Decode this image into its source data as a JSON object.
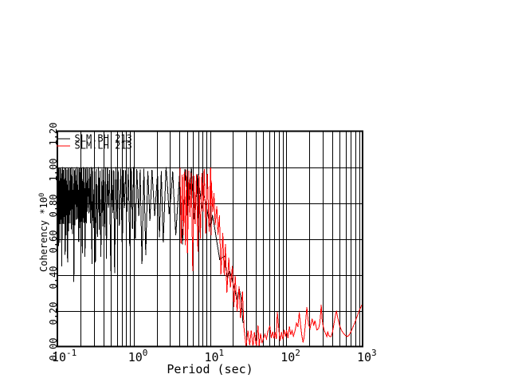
{
  "window": {
    "background": "#ffffff"
  },
  "chart_data": {
    "type": "line",
    "title": "",
    "xlabel": "Period (sec)",
    "ylabel": {
      "text": "Coherency",
      "scale_prefix": "*10",
      "scale_exp": "0"
    },
    "x_scale": "log",
    "y_scale": "linear",
    "xlim": [
      0.1,
      1000
    ],
    "ylim": [
      0.0,
      1.2
    ],
    "grid": true,
    "axis_color": "#000000",
    "background_color": "#ffffff",
    "x_ticks": [
      {
        "base": "10",
        "exp": "-1",
        "value": 0.1
      },
      {
        "base": "10",
        "exp": "0",
        "value": 1
      },
      {
        "base": "10",
        "exp": "1",
        "value": 10
      },
      {
        "base": "10",
        "exp": "2",
        "value": 100
      },
      {
        "base": "10",
        "exp": "3",
        "value": 1000
      }
    ],
    "y_ticks": [
      {
        "label": "0.00",
        "value": 0.0
      },
      {
        "label": "0.20",
        "value": 0.2
      },
      {
        "label": "0.40",
        "value": 0.4
      },
      {
        "label": "0.60",
        "value": 0.6
      },
      {
        "label": "0.80",
        "value": 0.8
      },
      {
        "label": "1.00",
        "value": 1.0
      },
      {
        "label": "1.20",
        "value": 1.2
      }
    ],
    "legend": {
      "position": "top-left",
      "entries": [
        "SLM.BH 213",
        "SLM.LH 213"
      ]
    },
    "series": [
      {
        "name": "SLM.BH 213",
        "color": "#000000",
        "points": [
          [
            0.1,
            0.992
          ],
          [
            0.1015,
            0.563
          ],
          [
            0.1027,
            0.997
          ],
          [
            0.1039,
            0.56
          ],
          [
            0.1052,
            0.994
          ],
          [
            0.1074,
            0.578
          ],
          [
            0.1092,
            0.994
          ],
          [
            0.1106,
            0.682
          ],
          [
            0.1128,
            0.991
          ],
          [
            0.1143,
            0.446
          ],
          [
            0.1164,
            1.0
          ],
          [
            0.1184,
            0.684
          ],
          [
            0.1199,
            0.984
          ],
          [
            0.1217,
            0.683
          ],
          [
            0.1239,
            0.995
          ],
          [
            0.1264,
            0.512
          ],
          [
            0.1282,
            0.998
          ],
          [
            0.1302,
            0.619
          ],
          [
            0.1332,
            0.986
          ],
          [
            0.136,
            0.47
          ],
          [
            0.1379,
            0.996
          ],
          [
            0.1405,
            0.642
          ],
          [
            0.1437,
            0.991
          ],
          [
            0.1465,
            0.687
          ],
          [
            0.1493,
            0.994
          ],
          [
            0.1524,
            0.653
          ],
          [
            0.1546,
            1.0
          ],
          [
            0.1584,
            0.627
          ],
          [
            0.162,
            0.99
          ],
          [
            0.1646,
            0.36
          ],
          [
            0.167,
            0.983
          ],
          [
            0.1696,
            0.675
          ],
          [
            0.1724,
            0.992
          ],
          [
            0.176,
            0.706
          ],
          [
            0.1803,
            1.0
          ],
          [
            0.1835,
            0.709
          ],
          [
            0.187,
            0.991
          ],
          [
            0.1903,
            0.582
          ],
          [
            0.1936,
            0.995
          ],
          [
            0.197,
            0.66
          ],
          [
            0.1999,
            0.993
          ],
          [
            0.2046,
            0.695
          ],
          [
            0.209,
            0.998
          ],
          [
            0.2123,
            0.52
          ],
          [
            0.218,
            1.0
          ],
          [
            0.2225,
            0.689
          ],
          [
            0.2262,
            0.998
          ],
          [
            0.2303,
            0.5
          ],
          [
            0.2344,
            0.99
          ],
          [
            0.2393,
            0.687
          ],
          [
            0.2431,
            1.0
          ],
          [
            0.2475,
            0.751
          ],
          [
            0.2523,
            0.99
          ],
          [
            0.26,
            0.742
          ],
          [
            0.2659,
            0.994
          ],
          [
            0.2717,
            0.686
          ],
          [
            0.2772,
            1.0
          ],
          [
            0.284,
            0.46
          ],
          [
            0.2894,
            0.995
          ],
          [
            0.2985,
            0.66
          ],
          [
            0.3075,
            0.999
          ],
          [
            0.3153,
            0.47
          ],
          [
            0.3246,
            0.989
          ],
          [
            0.3354,
            0.611
          ],
          [
            0.3458,
            1.0
          ],
          [
            0.3541,
            0.651
          ],
          [
            0.3607,
            0.981
          ],
          [
            0.3715,
            0.5
          ],
          [
            0.3841,
            0.992
          ],
          [
            0.3938,
            0.67
          ],
          [
            0.4027,
            0.986
          ],
          [
            0.4149,
            0.664
          ],
          [
            0.4293,
            1.0
          ],
          [
            0.4386,
            0.49
          ],
          [
            0.4525,
            1.0
          ],
          [
            0.4681,
            0.773
          ],
          [
            0.4818,
            0.984
          ],
          [
            0.501,
            0.42
          ],
          [
            0.5155,
            0.99
          ],
          [
            0.5343,
            0.745
          ],
          [
            0.5481,
            0.983
          ],
          [
            0.5624,
            0.41
          ],
          [
            0.5849,
            1.0
          ],
          [
            0.6034,
            0.709
          ],
          [
            0.6251,
            0.983
          ],
          [
            0.6482,
            0.674
          ],
          [
            0.6781,
            0.991
          ],
          [
            0.7093,
            0.53
          ],
          [
            0.7317,
            0.985
          ],
          [
            0.7569,
            0.772
          ],
          [
            0.7859,
            0.982
          ],
          [
            0.8163,
            0.751
          ],
          [
            0.85,
            0.994
          ],
          [
            0.8883,
            0.56
          ],
          [
            0.929,
            0.992
          ],
          [
            0.9651,
            0.656
          ],
          [
            0.9976,
            1.0
          ],
          [
            1.05,
            0.6
          ],
          [
            1.099,
            0.989
          ],
          [
            1.168,
            0.726
          ],
          [
            1.216,
            0.987
          ],
          [
            1.285,
            0.46
          ],
          [
            1.36,
            0.99
          ],
          [
            1.44,
            0.51
          ],
          [
            1.533,
            0.978
          ],
          [
            1.634,
            0.7
          ],
          [
            1.738,
            0.984
          ],
          [
            1.887,
            0.727
          ],
          [
            2.053,
            0.963
          ],
          [
            2.174,
            0.61
          ],
          [
            2.301,
            0.977
          ],
          [
            2.438,
            0.58
          ],
          [
            2.657,
            0.999
          ],
          [
            2.783,
            0.887
          ],
          [
            2.914,
            0.739
          ],
          [
            3.076,
            0.831
          ],
          [
            3.247,
            0.975
          ],
          [
            3.563,
            0.62
          ],
          [
            3.985,
            0.951
          ],
          [
            4.375,
            0.57
          ],
          [
            4.713,
            0.988
          ],
          [
            4.902,
            0.886
          ],
          [
            5.099,
            0.782
          ],
          [
            5.391,
            0.847
          ],
          [
            5.7,
            1.0
          ],
          [
            6.21,
            0.709
          ],
          [
            6.877,
            0.963
          ],
          [
            6.998,
            0.716
          ],
          [
            6.998,
            0.938
          ],
          [
            7.451,
            0.852
          ],
          [
            7.933,
            0.767
          ],
          [
            8.355,
            0.84
          ],
          [
            8.799,
            0.805
          ],
          [
            9.5,
            0.721
          ],
          [
            10.26,
            0.659
          ],
          [
            10.77,
            0.732
          ],
          [
            11.32,
            0.681
          ],
          [
            13.42,
            0.484
          ],
          [
            15.47,
            0.504
          ],
          [
            16.24,
            0.425
          ],
          [
            17.04,
            0.379
          ],
          [
            18.02,
            0.424
          ],
          [
            19.05,
            0.391
          ],
          [
            20.72,
            0.328
          ],
          [
            22.53,
            0.263
          ],
          [
            24.16,
            0.323
          ],
          [
            25.9,
            0.256
          ],
          [
            27.04,
            0.132
          ]
        ]
      },
      {
        "name": "SLM.LH 213",
        "color": "#ff0000",
        "points": [
          [
            4.05,
            0.996
          ],
          [
            4.184,
            0.573
          ],
          [
            4.331,
            0.957
          ],
          [
            4.478,
            0.62
          ],
          [
            4.609,
            0.973
          ],
          [
            4.766,
            0.565
          ],
          [
            4.938,
            0.987
          ],
          [
            5.07,
            0.52
          ],
          [
            5.287,
            0.979
          ],
          [
            5.467,
            0.722
          ],
          [
            5.703,
            0.968
          ],
          [
            5.941,
            0.42
          ],
          [
            6.141,
            0.954
          ],
          [
            6.372,
            0.682
          ],
          [
            6.64,
            0.959
          ],
          [
            6.954,
            0.53
          ],
          [
            7.178,
            0.956
          ],
          [
            7.48,
            0.6
          ],
          [
            7.841,
            0.967
          ],
          [
            8.122,
            0.752
          ],
          [
            8.416,
            0.989
          ],
          [
            8.812,
            0.63
          ],
          [
            9.255,
            0.962
          ],
          [
            9.752,
            0.64
          ],
          [
            10.19,
            0.997
          ],
          [
            10.4,
            0.619
          ],
          [
            10.4,
            0.925
          ],
          [
            10.91,
            0.748
          ],
          [
            11.28,
            0.855
          ],
          [
            11.7,
            0.678
          ],
          [
            12.3,
            0.781
          ],
          [
            12.73,
            0.622
          ],
          [
            13.32,
            0.731
          ],
          [
            13.9,
            0.4
          ],
          [
            14.73,
            0.633
          ],
          [
            15.37,
            0.397
          ],
          [
            15.95,
            0.571
          ],
          [
            16.65,
            0.3
          ],
          [
            17.65,
            0.496
          ],
          [
            18.53,
            0.328
          ],
          [
            19.68,
            0.449
          ],
          [
            20.57,
            0.22
          ],
          [
            21.41,
            0.395
          ],
          [
            22.66,
            0.195
          ],
          [
            24.07,
            0.335
          ],
          [
            25.11,
            0.158
          ],
          [
            26.67,
            0.306
          ],
          [
            27.86,
            0.11
          ],
          [
            28.0,
            0.099
          ],
          [
            29.69,
            0.0
          ],
          [
            31.47,
            0.088
          ],
          [
            33.19,
            0.007
          ],
          [
            34.74,
            0.089
          ],
          [
            36.62,
            0.0
          ],
          [
            38.25,
            0.08
          ],
          [
            40.52,
            0.001
          ],
          [
            42.55,
            0.117
          ],
          [
            44.23,
            0.0
          ],
          [
            45.95,
            0.074
          ],
          [
            48.18,
            0.018
          ],
          [
            50.0,
            0.042
          ],
          [
            52.4,
            0.069
          ],
          [
            55.0,
            0.042
          ],
          [
            57.4,
            0.084
          ],
          [
            60.9,
            0.115
          ],
          [
            63.5,
            0.048
          ],
          [
            66.4,
            0.082
          ],
          [
            69.0,
            0.045
          ],
          [
            71.5,
            0.08
          ],
          [
            74.0,
            0.042
          ],
          [
            76.3,
            0.194
          ],
          [
            79.0,
            0.119
          ],
          [
            81.0,
            0.07
          ],
          [
            83.0,
            0.032
          ],
          [
            86.5,
            0.08
          ],
          [
            90.0,
            0.041
          ],
          [
            93.7,
            0.094
          ],
          [
            97.5,
            0.056
          ],
          [
            101.0,
            0.09
          ],
          [
            105.0,
            0.048
          ],
          [
            110.0,
            0.111
          ],
          [
            114.5,
            0.065
          ],
          [
            119.0,
            0.089
          ],
          [
            124.0,
            0.057
          ],
          [
            130.0,
            0.086
          ],
          [
            136.0,
            0.13
          ],
          [
            142.0,
            0.11
          ],
          [
            148.0,
            0.191
          ],
          [
            155.0,
            0.109
          ],
          [
            160.0,
            0.062
          ],
          [
            166.0,
            0.023
          ],
          [
            171.0,
            0.05
          ],
          [
            178.0,
            0.124
          ],
          [
            186.0,
            0.22
          ],
          [
            196.0,
            0.122
          ],
          [
            205.0,
            0.101
          ],
          [
            218.0,
            0.155
          ],
          [
            229.0,
            0.117
          ],
          [
            237.0,
            0.145
          ],
          [
            252.0,
            0.092
          ],
          [
            265.0,
            0.1
          ],
          [
            275.0,
            0.13
          ],
          [
            282.0,
            0.184
          ],
          [
            287.0,
            0.233
          ],
          [
            295.0,
            0.152
          ],
          [
            303.0,
            0.117
          ],
          [
            315.0,
            0.089
          ],
          [
            329.0,
            0.07
          ],
          [
            340.0,
            0.055
          ],
          [
            350.0,
            0.084
          ],
          [
            360.0,
            0.062
          ],
          [
            374.0,
            0.055
          ],
          [
            388.0,
            0.056
          ],
          [
            404.0,
            0.082
          ],
          [
            417.0,
            0.115
          ],
          [
            434.0,
            0.158
          ],
          [
            448.0,
            0.19
          ],
          [
            455.0,
            0.196
          ],
          [
            470.0,
            0.166
          ],
          [
            500.0,
            0.116
          ],
          [
            530.0,
            0.09
          ],
          [
            560.0,
            0.075
          ],
          [
            590.0,
            0.063
          ],
          [
            625.0,
            0.056
          ],
          [
            660.0,
            0.061
          ],
          [
            700.0,
            0.08
          ],
          [
            745.0,
            0.107
          ],
          [
            790.0,
            0.132
          ],
          [
            835.0,
            0.16
          ],
          [
            885.0,
            0.19
          ],
          [
            940.0,
            0.216
          ],
          [
            1000.0,
            0.241
          ]
        ]
      }
    ]
  }
}
